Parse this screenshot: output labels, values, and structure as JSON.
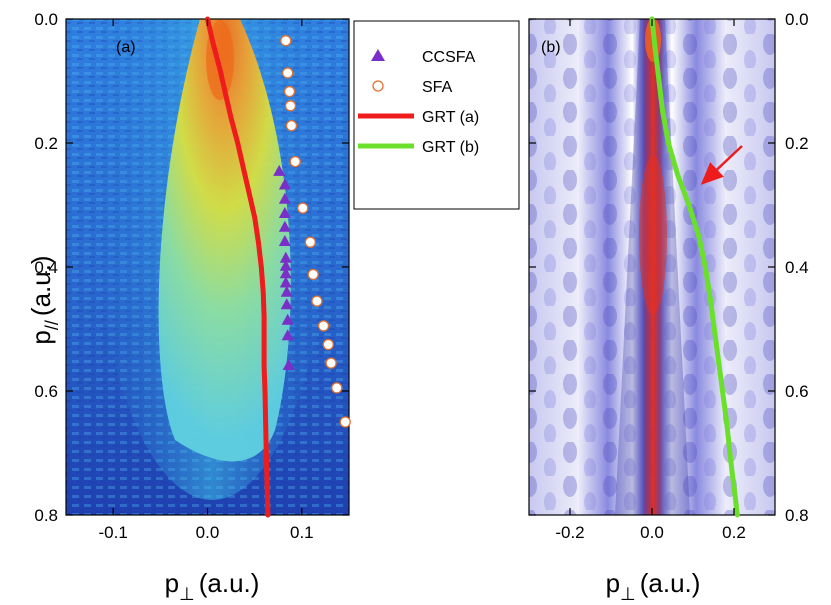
{
  "chart_data": [
    {
      "type": "heatmap",
      "panel_label": "(a)",
      "xlabel": "p",
      "xlabel_sub": "⊥",
      "xlabel_unit": "(a.u.)",
      "ylabel": "p",
      "ylabel_sub": "//",
      "ylabel_unit": "(a.u.)",
      "xlim": [
        -0.15,
        0.15
      ],
      "ylim": [
        0.0,
        0.8
      ],
      "y_inverted": true,
      "colormap": "jet",
      "xticks": [
        -0.1,
        0.0,
        0.1
      ],
      "xtick_labels": [
        "-0.1",
        "0.0",
        "0.1"
      ],
      "yticks": [
        0.0,
        0.2,
        0.4,
        0.6,
        0.8
      ],
      "ytick_labels": [
        "0.0",
        "0.2",
        "0.4",
        "0.6",
        "0.8"
      ],
      "series": [
        {
          "name": "CCSFA",
          "marker": "triangle",
          "color": "#7b2fc9",
          "x": [
            0.076,
            0.082,
            0.082,
            0.082,
            0.082,
            0.082,
            0.083,
            0.083,
            0.083,
            0.083,
            0.084,
            0.084,
            0.085,
            0.085,
            0.086
          ],
          "y": [
            0.245,
            0.267,
            0.29,
            0.313,
            0.335,
            0.358,
            0.385,
            0.398,
            0.41,
            0.425,
            0.44,
            0.46,
            0.485,
            0.51,
            0.558
          ]
        },
        {
          "name": "SFA",
          "marker": "open-circle",
          "color": "#e07030",
          "x": [
            0.083,
            0.085,
            0.087,
            0.088,
            0.089,
            0.093,
            0.101,
            0.109,
            0.112,
            0.116,
            0.123,
            0.128,
            0.131,
            0.137,
            0.146
          ],
          "y": [
            0.035,
            0.087,
            0.117,
            0.14,
            0.172,
            0.23,
            0.305,
            0.36,
            0.412,
            0.455,
            0.495,
            0.525,
            0.555,
            0.595,
            0.65
          ]
        },
        {
          "name": "GRT (a)",
          "marker": "line",
          "color": "#ee1c1c",
          "x": [
            0.0,
            0.006,
            0.013,
            0.019,
            0.025,
            0.032,
            0.038,
            0.044,
            0.05,
            0.054,
            0.057,
            0.059,
            0.06,
            0.06,
            0.06,
            0.061,
            0.062,
            0.063,
            0.064
          ],
          "y": [
            0.0,
            0.04,
            0.08,
            0.12,
            0.16,
            0.2,
            0.24,
            0.28,
            0.32,
            0.36,
            0.4,
            0.44,
            0.48,
            0.52,
            0.56,
            0.6,
            0.68,
            0.74,
            0.8
          ]
        }
      ]
    },
    {
      "type": "heatmap",
      "panel_label": "(b)",
      "xlabel": "p",
      "xlabel_sub": "⊥",
      "xlabel_unit": "(a.u.)",
      "xlim": [
        -0.3,
        0.3
      ],
      "ylim": [
        0.0,
        0.8
      ],
      "y_inverted": true,
      "colormap": "white-blue-red",
      "xticks": [
        -0.2,
        0.0,
        0.2
      ],
      "xtick_labels": [
        "-0.2",
        "0.0",
        "0.2"
      ],
      "yticks": [
        0.0,
        0.2,
        0.4,
        0.6,
        0.8
      ],
      "ytick_labels": [
        "0.0",
        "0.2",
        "0.4",
        "0.6",
        "0.8"
      ],
      "annotation": "arrow",
      "series": [
        {
          "name": "GRT (b)",
          "marker": "line",
          "color": "#6be02a",
          "x": [
            0.0,
            0.008,
            0.017,
            0.026,
            0.04,
            0.062,
            0.09,
            0.114,
            0.13,
            0.142,
            0.152,
            0.162,
            0.172,
            0.182,
            0.19,
            0.197,
            0.203,
            0.208
          ],
          "y": [
            0.0,
            0.05,
            0.1,
            0.15,
            0.2,
            0.25,
            0.3,
            0.35,
            0.4,
            0.45,
            0.5,
            0.55,
            0.6,
            0.65,
            0.7,
            0.74,
            0.77,
            0.8
          ]
        }
      ]
    }
  ],
  "legend": {
    "entries": [
      "CCSFA",
      "SFA",
      "GRT (a)",
      "GRT (b)"
    ],
    "markers": [
      "triangle",
      "open-circle",
      "line",
      "line"
    ],
    "colors": [
      "#7b2fc9",
      "#e07030",
      "#ee1c1c",
      "#6be02a"
    ]
  }
}
